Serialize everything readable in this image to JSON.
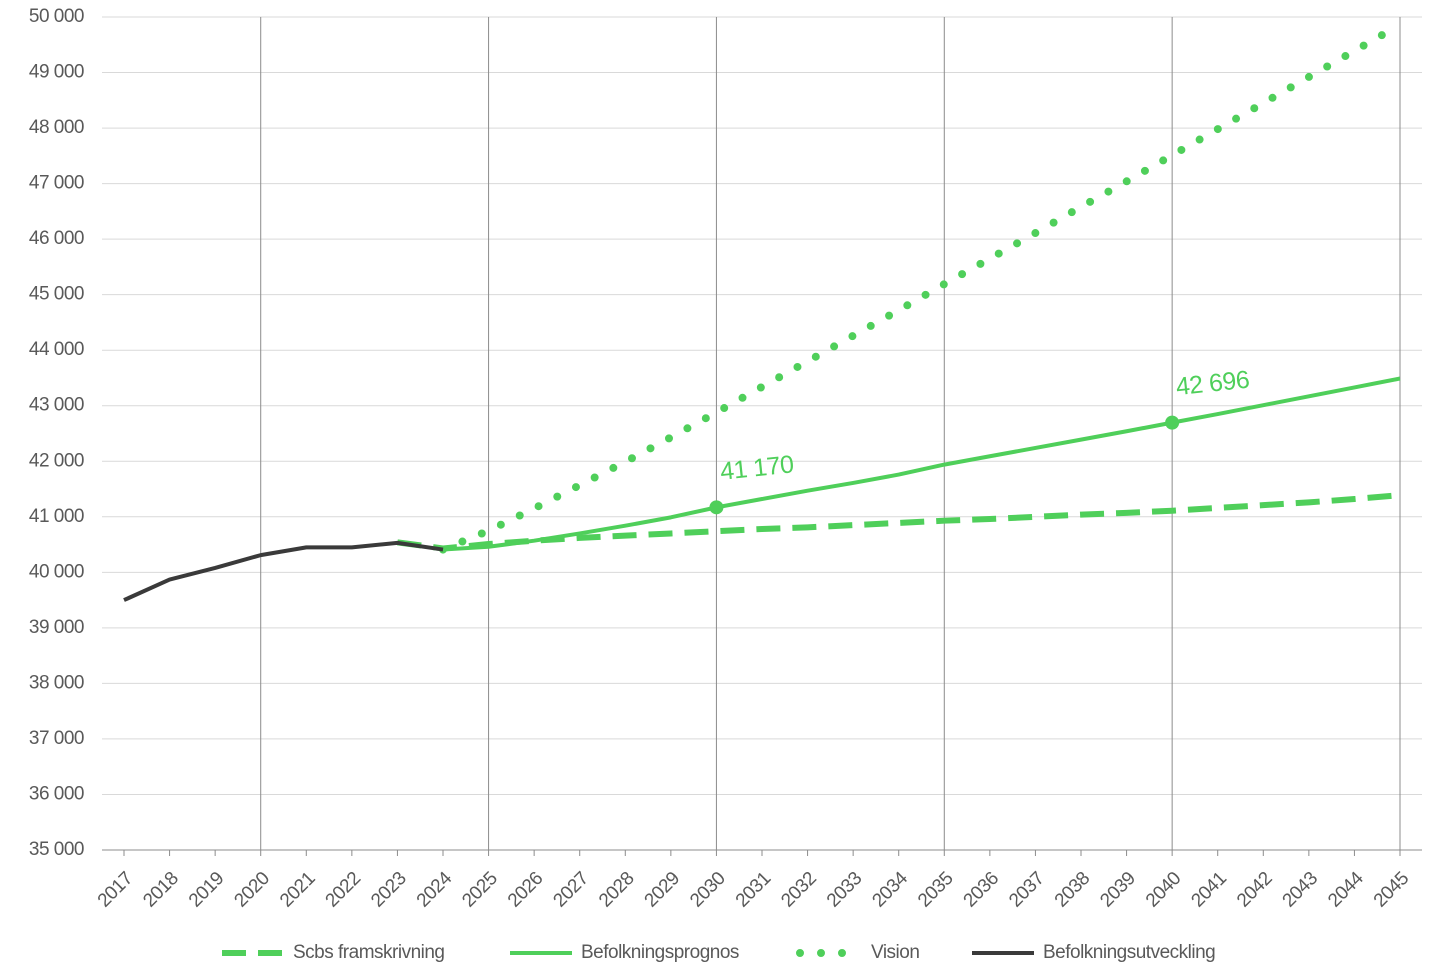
{
  "chart_data": {
    "type": "line",
    "categories": [
      "2017",
      "2018",
      "2019",
      "2020",
      "2021",
      "2022",
      "2023",
      "2024",
      "2025",
      "2026",
      "2027",
      "2028",
      "2029",
      "2030",
      "2031",
      "2032",
      "2033",
      "2034",
      "2035",
      "2036",
      "2037",
      "2038",
      "2039",
      "2040",
      "2041",
      "2042",
      "2043",
      "2044",
      "2045"
    ],
    "ylim": [
      35000,
      50000
    ],
    "yticks": [
      {
        "value": 35000,
        "label": "35 000"
      },
      {
        "value": 36000,
        "label": "36 000"
      },
      {
        "value": 37000,
        "label": "37 000"
      },
      {
        "value": 38000,
        "label": "38 000"
      },
      {
        "value": 39000,
        "label": "39 000"
      },
      {
        "value": 40000,
        "label": "40 000"
      },
      {
        "value": 41000,
        "label": "41 000"
      },
      {
        "value": 42000,
        "label": "42 000"
      },
      {
        "value": 43000,
        "label": "43 000"
      },
      {
        "value": 44000,
        "label": "44 000"
      },
      {
        "value": 45000,
        "label": "45 000"
      },
      {
        "value": 46000,
        "label": "46 000"
      },
      {
        "value": 47000,
        "label": "47 000"
      },
      {
        "value": 48000,
        "label": "48 000"
      },
      {
        "value": 49000,
        "label": "49 000"
      },
      {
        "value": 50000,
        "label": "50 000"
      }
    ],
    "grid": true,
    "legend": "bottom",
    "series": [
      {
        "name": "Scbs framskrivning",
        "color": "#4fcf5a",
        "style": "dashed",
        "values": [
          null,
          null,
          null,
          null,
          null,
          null,
          40540,
          40430,
          40510,
          40570,
          40620,
          40660,
          40700,
          40740,
          40780,
          40810,
          40850,
          40890,
          40930,
          40960,
          41000,
          41040,
          41070,
          41110,
          41160,
          41210,
          41260,
          41320,
          41390
        ]
      },
      {
        "name": "Befolkningsprognos",
        "color": "#4fcf5a",
        "style": "solid",
        "values": [
          null,
          null,
          null,
          null,
          null,
          null,
          null,
          40410,
          40460,
          40570,
          40700,
          40840,
          40990,
          41170,
          41320,
          41470,
          41610,
          41760,
          41940,
          42090,
          42240,
          42390,
          42540,
          42696,
          42850,
          43010,
          43170,
          43330,
          43490
        ],
        "value_labels": [
          null,
          null,
          null,
          null,
          null,
          null,
          null,
          null,
          null,
          null,
          null,
          null,
          null,
          "41 170",
          null,
          null,
          null,
          null,
          null,
          null,
          null,
          null,
          null,
          "42 696",
          null,
          null,
          null,
          null,
          null
        ]
      },
      {
        "name": "Vision",
        "color": "#4fcf5a",
        "style": "dotted",
        "values": [
          null,
          null,
          null,
          null,
          null,
          null,
          null,
          40410,
          40750,
          41150,
          41570,
          41990,
          42430,
          42880,
          43340,
          43800,
          44260,
          44720,
          45190,
          45650,
          46110,
          46580,
          47040,
          47510,
          47980,
          48450,
          48920,
          49390,
          49860
        ]
      },
      {
        "name": "Befolkningsutveckling",
        "color": "#3a3a3a",
        "style": "solid",
        "values": [
          39500,
          39870,
          40080,
          40310,
          40450,
          40450,
          40530,
          40410,
          null,
          null,
          null,
          null,
          null,
          null,
          null,
          null,
          null,
          null,
          null,
          null,
          null,
          null,
          null,
          null,
          null,
          null,
          null,
          null,
          null
        ]
      }
    ]
  }
}
